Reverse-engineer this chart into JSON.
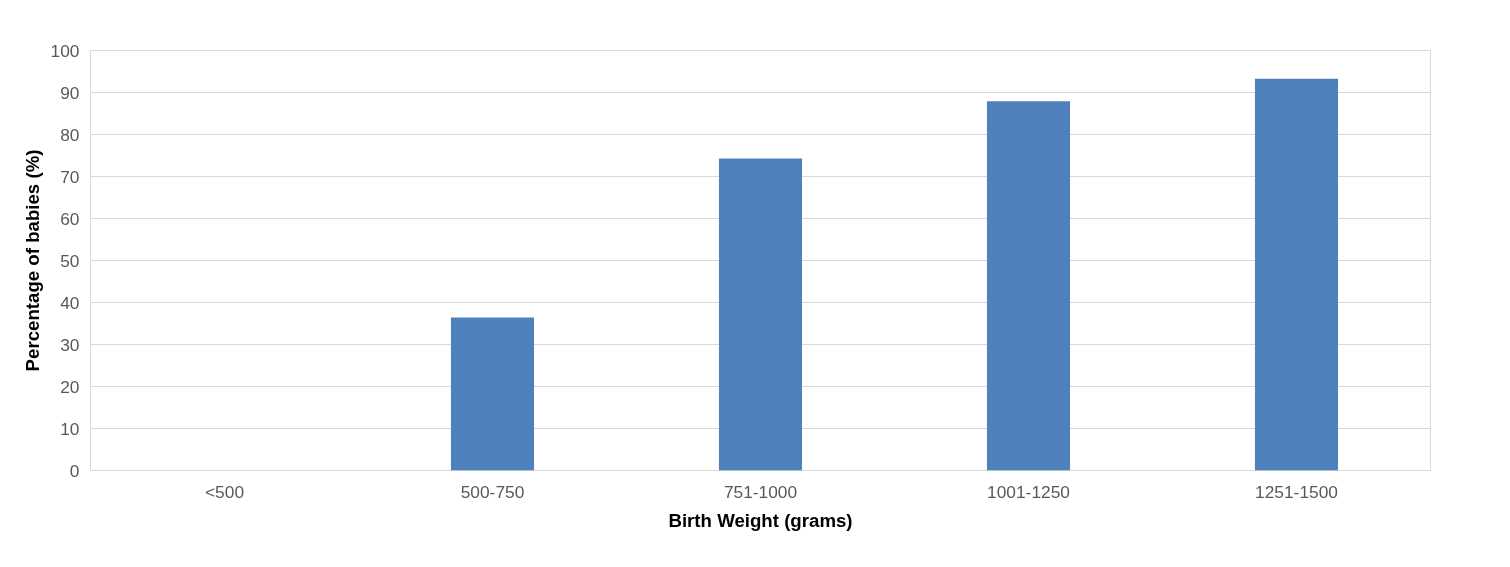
{
  "chart_data": {
    "type": "bar",
    "xlabel": "Birth Weight (grams)",
    "ylabel": "Percentage of babies (%)",
    "categories": [
      "<500",
      "500-750",
      "751-1000",
      "1001-1250",
      "1251-1500"
    ],
    "values": [
      0,
      36.4,
      74.3,
      87.9,
      93.3
    ],
    "color": "#4f81bd",
    "ylim": [
      0,
      100
    ],
    "yticks": [
      0,
      10,
      20,
      30,
      40,
      50,
      60,
      70,
      80,
      90,
      100
    ],
    "grid": "y"
  }
}
